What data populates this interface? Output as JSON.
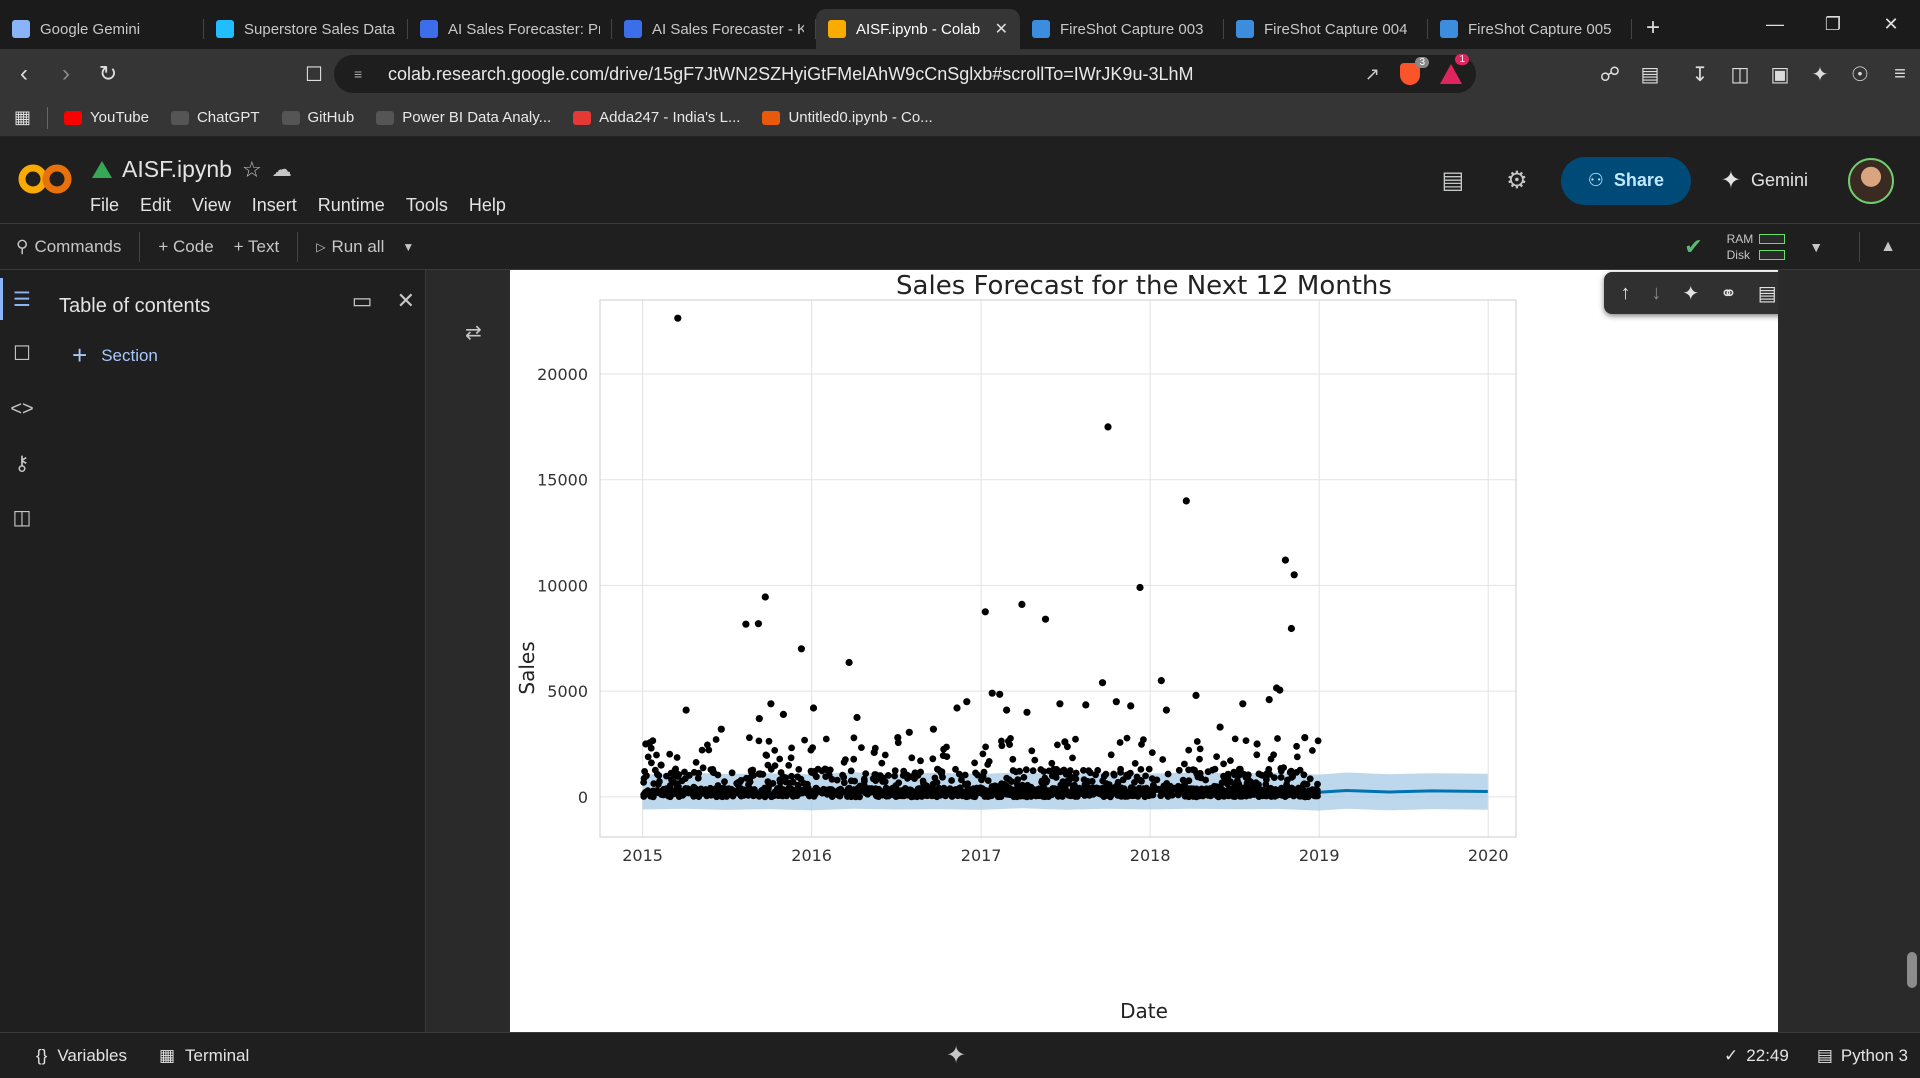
{
  "browser": {
    "tabs": [
      {
        "title": "Google Gemini",
        "icon": "gemini-icon",
        "color": "#8ab4f8"
      },
      {
        "title": "Superstore Sales Data",
        "icon": "kaggle-icon",
        "color": "#20beff"
      },
      {
        "title": "AI Sales Forecaster: Pr",
        "icon": "app-icon",
        "color": "#3b6ee8"
      },
      {
        "title": "AI Sales Forecaster - K",
        "icon": "app-icon",
        "color": "#3b6ee8"
      },
      {
        "title": "AISF.ipynb - Colab",
        "icon": "colab-icon",
        "color": "#f9ab00",
        "active": true
      },
      {
        "title": "FireShot Capture 003",
        "icon": "fireshot-icon",
        "color": "#3c8dde"
      },
      {
        "title": "FireShot Capture 004",
        "icon": "fireshot-icon",
        "color": "#3c8dde"
      },
      {
        "title": "FireShot Capture 005",
        "icon": "fireshot-icon",
        "color": "#3c8dde"
      }
    ],
    "new_tab": "+",
    "url": "colab.research.google.com/drive/15gF7JtWN2SZHyiGtFMelAhW9cCnSglxb#scrollTo=IWrJK9u-3LhM",
    "brave_badge": "3",
    "alert_badge": "1",
    "bookmarks": [
      {
        "label": "YouTube",
        "icon": "youtube-icon",
        "color": "#ff0000"
      },
      {
        "label": "ChatGPT",
        "icon": "chatgpt-icon",
        "color": "#555555"
      },
      {
        "label": "GitHub",
        "icon": "github-icon",
        "color": "#555555"
      },
      {
        "label": "Power BI Data Analy...",
        "icon": "powerbi-icon",
        "color": "#555555"
      },
      {
        "label": "Adda247 - India's L...",
        "icon": "adda-icon",
        "color": "#e53935"
      },
      {
        "label": "Untitled0.ipynb - Co...",
        "icon": "colab-icon",
        "color": "#e8590c"
      }
    ]
  },
  "colab": {
    "notebook_title": "AISF.ipynb",
    "menu": [
      "File",
      "Edit",
      "View",
      "Insert",
      "Runtime",
      "Tools",
      "Help"
    ],
    "share_label": "Share",
    "gemini_label": "Gemini",
    "toolbar": {
      "commands": "Commands",
      "add_code": "+ Code",
      "add_text": "+ Text",
      "run_all": "Run all",
      "ram": "RAM",
      "disk": "Disk"
    },
    "toc": {
      "title": "Table of contents",
      "section": "Section"
    },
    "status": {
      "variables": "Variables",
      "terminal": "Terminal",
      "time": "22:49",
      "kernel": "Python 3"
    }
  },
  "chart_data": {
    "type": "scatter",
    "title": "Sales Forecast for the Next 12 Months",
    "xlabel": "Date",
    "ylabel": "Sales",
    "xlim": [
      "2014-10-01",
      "2020-03-01"
    ],
    "ylim": [
      -1900,
      23500
    ],
    "x_ticks": [
      "2015",
      "2016",
      "2017",
      "2018",
      "2019",
      "2020"
    ],
    "y_ticks": [
      0,
      5000,
      10000,
      15000,
      20000
    ],
    "grid": true,
    "colors": {
      "points": "#000000",
      "forecast_line": "#0072b2",
      "interval": "#a7cbe6"
    },
    "series": [
      {
        "name": "",
        "kind": "observed_points",
        "points": [
          [
            "2015-03-18",
            22638
          ],
          [
            "2015-08-12",
            8167
          ],
          [
            "2015-09-08",
            8187
          ],
          [
            "2015-09-23",
            9450
          ],
          [
            "2015-12-10",
            7000
          ],
          [
            "2016-03-22",
            6354
          ],
          [
            "2017-01-10",
            8750
          ],
          [
            "2017-03-30",
            9100
          ],
          [
            "2017-05-20",
            8400
          ],
          [
            "2017-10-02",
            17500
          ],
          [
            "2017-12-10",
            9900
          ],
          [
            "2018-03-20",
            13999
          ],
          [
            "2018-10-20",
            11199
          ],
          [
            "2018-11-08",
            10500
          ],
          [
            "2018-11-02",
            7960
          ],
          [
            "2016-07-30",
            3050
          ],
          [
            "2015-04-05",
            4100
          ],
          [
            "2015-06-20",
            3200
          ],
          [
            "2015-09-10",
            3700
          ],
          [
            "2015-10-05",
            4400
          ],
          [
            "2015-11-01",
            3900
          ],
          [
            "2016-01-05",
            4200
          ],
          [
            "2016-04-08",
            3750
          ],
          [
            "2016-07-05",
            2800
          ],
          [
            "2016-09-20",
            3200
          ],
          [
            "2016-11-10",
            4200
          ],
          [
            "2016-12-01",
            4500
          ],
          [
            "2017-01-25",
            4900
          ],
          [
            "2017-02-10",
            4850
          ],
          [
            "2017-02-25",
            4100
          ],
          [
            "2017-04-10",
            4000
          ],
          [
            "2017-06-20",
            4400
          ],
          [
            "2017-08-15",
            4350
          ],
          [
            "2017-09-20",
            5400
          ],
          [
            "2017-10-20",
            4500
          ],
          [
            "2017-11-20",
            4300
          ],
          [
            "2018-01-25",
            5500
          ],
          [
            "2018-02-05",
            4100
          ],
          [
            "2018-04-10",
            4800
          ],
          [
            "2018-07-20",
            4400
          ],
          [
            "2018-09-15",
            4600
          ],
          [
            "2018-10-01",
            5150
          ],
          [
            "2018-10-08",
            5050
          ],
          [
            "2018-12-01",
            2800
          ],
          [
            "2015-01-08",
            2500
          ],
          [
            "2015-02-10",
            1500
          ],
          [
            "2016-05-15",
            2100
          ],
          [
            "2017-07-01",
            2600
          ],
          [
            "2018-06-01",
            3300
          ],
          [
            "2018-08-20",
            2500
          ]
        ]
      },
      {
        "name": "",
        "kind": "forecast",
        "x": [
          "2015-01-01",
          "2015-04-01",
          "2015-07-01",
          "2015-10-01",
          "2016-01-01",
          "2016-04-01",
          "2016-07-01",
          "2016-10-01",
          "2017-01-01",
          "2017-04-01",
          "2017-07-01",
          "2017-10-01",
          "2018-01-01",
          "2018-04-01",
          "2018-07-01",
          "2018-10-01",
          "2019-01-01",
          "2019-03-01",
          "2019-06-01",
          "2019-09-01",
          "2019-12-31"
        ],
        "yhat": [
          230,
          300,
          240,
          280,
          220,
          300,
          260,
          290,
          240,
          310,
          250,
          300,
          250,
          300,
          260,
          290,
          220,
          300,
          230,
          280,
          250
        ],
        "yhat_lower": [
          -600,
          -560,
          -620,
          -580,
          -640,
          -560,
          -600,
          -580,
          -620,
          -540,
          -610,
          -560,
          -600,
          -560,
          -590,
          -570,
          -650,
          -560,
          -640,
          -580,
          -610
        ],
        "yhat_upper": [
          1050,
          1150,
          1080,
          1120,
          1060,
          1160,
          1100,
          1130,
          1080,
          1170,
          1090,
          1150,
          1100,
          1150,
          1110,
          1130,
          1050,
          1150,
          1070,
          1120,
          1090
        ]
      }
    ]
  }
}
